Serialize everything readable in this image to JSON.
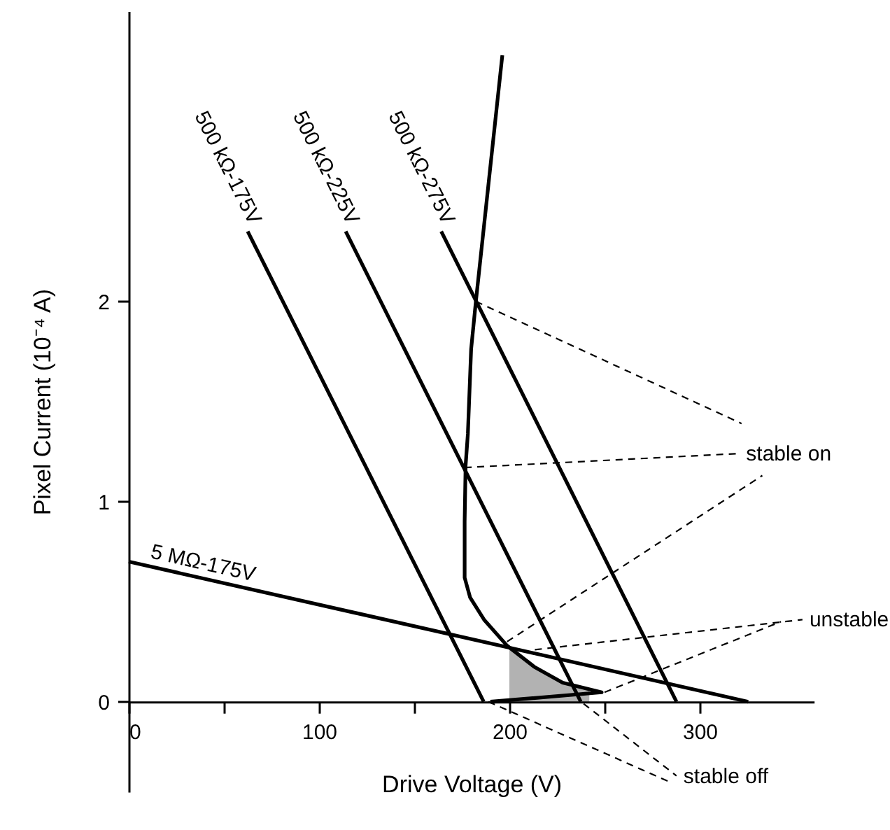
{
  "chart_data": {
    "type": "line",
    "xlabel": "Drive Voltage (V)",
    "ylabel": "Pixel Current (10⁻⁴ A)",
    "xlim": [
      0,
      360
    ],
    "ylim": [
      -0.45,
      3.45
    ],
    "xticks": [
      0,
      {
        "value": 50,
        "label": null
      },
      100,
      {
        "value": 150,
        "label": null
      },
      200,
      {
        "value": 250,
        "label": null
      },
      300
    ],
    "yticks": [
      0,
      1,
      2
    ],
    "line_style": "solid",
    "series": [
      {
        "color": "#000000",
        "x": [
          190,
          248.5,
          228,
          213,
          198.8,
          186.7,
          179.4,
          176.5,
          176.5,
          177,
          178.2,
          179.9,
          182.4,
          196.3
        ],
        "values": [
          0,
          0.047,
          0.095,
          0.175,
          0.28,
          0.41,
          0.52,
          0.62,
          0.9,
          1.18,
          1.34,
          1.76,
          2.0,
          3.23
        ]
      },
      {
        "name": "500 kΩ-175V",
        "color": "#000000",
        "x": [
          62.5,
          186.5
        ],
        "values": [
          2.35,
          0
        ]
      },
      {
        "name": "500 kΩ-225V",
        "color": "#000000",
        "x": [
          114,
          237.5
        ],
        "values": [
          2.35,
          0
        ]
      },
      {
        "name": "500 kΩ-275V",
        "color": "#000000",
        "x": [
          164.2,
          287.8
        ],
        "values": [
          2.35,
          0
        ]
      },
      {
        "name": "5 MΩ-175V",
        "color": "#000000",
        "x": [
          0,
          325.5
        ],
        "values": [
          0.7,
          0
        ]
      },
      {
        "type": "area",
        "color": "#000000",
        "x": [
          200,
          203,
          206,
          209,
          212,
          215,
          218,
          221,
          224,
          227,
          230,
          233,
          236,
          239,
          242
        ],
        "values": [
          0.27,
          0.25,
          0.23,
          0.2,
          0.18,
          0.17,
          0.15,
          0.13,
          0.12,
          0.1,
          0.09,
          0.08,
          0.08,
          0.07,
          0.06
        ]
      },
      {
        "color": "#000000",
        "line_style": "dashed",
        "x": [
          182.4,
          322
        ],
        "values": [
          2.0,
          1.39
        ]
      },
      {
        "color": "#000000",
        "line_style": "dashed",
        "x": [
          176.5,
          320.7
        ],
        "values": [
          1.17,
          1.24
        ]
      },
      {
        "color": "#000000",
        "line_style": "dashed",
        "x": [
          198.8,
          332.9
        ],
        "values": [
          0.3,
          1.13
        ]
      },
      {
        "color": "#000000",
        "line_style": "dashed",
        "x": [
          213.4,
          354
        ],
        "values": [
          0.26,
          0.41
        ]
      },
      {
        "color": "#000000",
        "line_style": "dashed",
        "x": [
          250,
          342.7
        ],
        "values": [
          0.047,
          0.4
        ]
      },
      {
        "color": "#000000",
        "line_style": "dashed",
        "x": [
          239,
          287.8
        ],
        "values": [
          -0.01,
          -0.37
        ]
      },
      {
        "color": "#000000",
        "line_style": "dashed",
        "x": [
          189,
          284
        ],
        "values": [
          0,
          -0.4
        ]
      }
    ],
    "annotations": [
      {
        "text": "stable on",
        "x": 320.7,
        "y": 1.24
      },
      {
        "text": "unstable",
        "x": 354,
        "y": 0.41
      },
      {
        "text": "stable off",
        "x": 287.8,
        "y": -0.37
      }
    ]
  }
}
